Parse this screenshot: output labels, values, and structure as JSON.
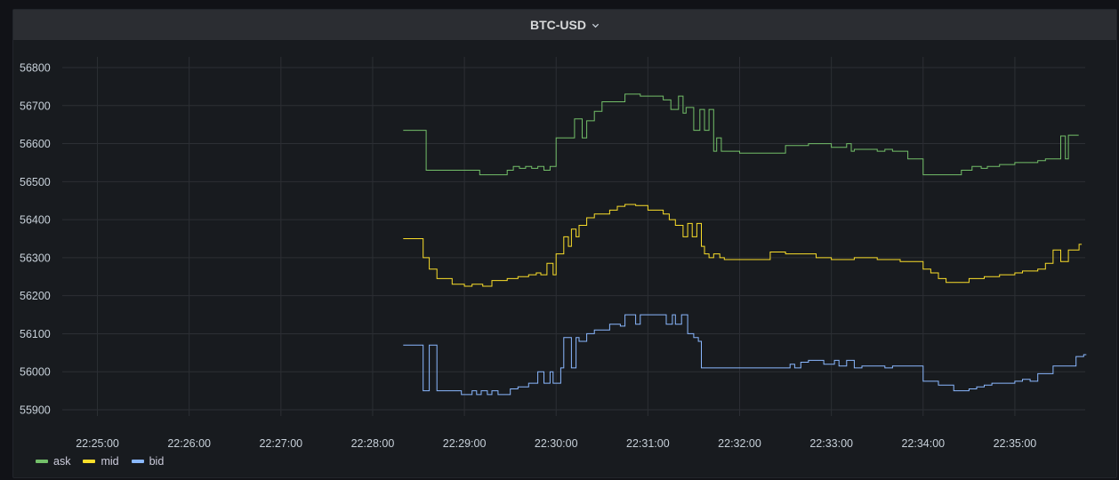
{
  "panel": {
    "title": "BTC-USD"
  },
  "colors": {
    "ask": "#73bf69",
    "mid": "#fade2a",
    "bid": "#8ab8ff",
    "grid": "#2c2f34"
  },
  "chart_data": {
    "type": "line",
    "title": "BTC-USD",
    "xlabel": "",
    "ylabel": "",
    "grid": true,
    "legend_position": "bottom-left",
    "interpolation": "step",
    "y_ticks": [
      "56800",
      "56700",
      "56600",
      "56500",
      "56400",
      "56300",
      "56200",
      "56100",
      "56000",
      "55900"
    ],
    "x_ticks": [
      "22:25:00",
      "22:26:00",
      "22:27:00",
      "22:28:00",
      "22:29:00",
      "22:30:00",
      "22:31:00",
      "22:32:00",
      "22:33:00",
      "22:34:00",
      "22:35:00"
    ],
    "x_range": [
      "22:24:37",
      "22:35:46"
    ],
    "ylim": [
      55875,
      56810
    ],
    "series": [
      {
        "name": "ask",
        "x": [
          "22:28:20",
          "22:28:35",
          "22:28:45",
          "22:29:10",
          "22:29:20",
          "22:29:28",
          "22:29:32",
          "22:29:36",
          "22:29:40",
          "22:29:44",
          "22:29:48",
          "22:29:52",
          "22:29:56",
          "22:30:00",
          "22:30:04",
          "22:30:08",
          "22:30:12",
          "22:30:17",
          "22:30:20",
          "22:30:25",
          "22:30:30",
          "22:30:45",
          "22:30:55",
          "22:31:10",
          "22:31:15",
          "22:31:20",
          "22:31:23",
          "22:31:25",
          "22:31:30",
          "22:31:34",
          "22:31:37",
          "22:31:40",
          "22:31:43",
          "22:31:45",
          "22:31:48",
          "22:31:52",
          "22:32:00",
          "22:32:30",
          "22:32:45",
          "22:33:00",
          "22:33:10",
          "22:33:13",
          "22:33:15",
          "22:33:30",
          "22:33:35",
          "22:33:40",
          "22:33:50",
          "22:34:00",
          "22:34:15",
          "22:34:25",
          "22:34:32",
          "22:34:38",
          "22:34:42",
          "22:34:50",
          "22:35:00",
          "22:35:15",
          "22:35:20",
          "22:35:30",
          "22:35:33",
          "22:35:35",
          "22:35:40"
        ],
        "y": [
          56635,
          56530,
          56530,
          56518,
          56518,
          56530,
          56540,
          56535,
          56540,
          56535,
          56540,
          56530,
          56540,
          56615,
          56615,
          56615,
          56665,
          56615,
          56660,
          56685,
          56710,
          56730,
          56725,
          56715,
          56690,
          56725,
          56680,
          56695,
          56635,
          56690,
          56635,
          56690,
          56580,
          56615,
          56580,
          56580,
          56575,
          56595,
          56600,
          56590,
          56600,
          56580,
          56585,
          56580,
          56585,
          56580,
          56560,
          56518,
          56518,
          56530,
          56540,
          56535,
          56540,
          56545,
          56550,
          56555,
          56560,
          56620,
          56560,
          56622,
          56622
        ]
      },
      {
        "name": "mid",
        "x": [
          "22:28:20",
          "22:28:33",
          "22:28:37",
          "22:28:42",
          "22:28:52",
          "22:29:00",
          "22:29:05",
          "22:29:12",
          "22:29:18",
          "22:29:28",
          "22:29:35",
          "22:29:42",
          "22:29:47",
          "22:29:50",
          "22:29:54",
          "22:29:58",
          "22:30:00",
          "22:30:03",
          "22:30:05",
          "22:30:08",
          "22:30:10",
          "22:30:13",
          "22:30:15",
          "22:30:20",
          "22:30:25",
          "22:30:35",
          "22:30:40",
          "22:30:45",
          "22:30:52",
          "22:31:00",
          "22:31:10",
          "22:31:14",
          "22:31:18",
          "22:31:23",
          "22:31:26",
          "22:31:29",
          "22:31:32",
          "22:31:35",
          "22:31:37",
          "22:31:40",
          "22:31:43",
          "22:31:47",
          "22:31:50",
          "22:32:00",
          "22:32:10",
          "22:32:20",
          "22:32:30",
          "22:32:50",
          "22:33:00",
          "22:33:15",
          "22:33:30",
          "22:33:45",
          "22:34:00",
          "22:34:05",
          "22:34:10",
          "22:34:15",
          "22:34:22",
          "22:34:30",
          "22:34:40",
          "22:34:50",
          "22:35:00",
          "22:35:05",
          "22:35:15",
          "22:35:20",
          "22:35:25",
          "22:35:30",
          "22:35:35",
          "22:35:42"
        ],
        "y": [
          56350,
          56300,
          56270,
          56245,
          56230,
          56225,
          56230,
          56225,
          56240,
          56245,
          56250,
          56255,
          56260,
          56255,
          56285,
          56255,
          56310,
          56310,
          56355,
          56330,
          56375,
          56355,
          56385,
          56405,
          56415,
          56425,
          56435,
          56440,
          56437,
          56425,
          56415,
          56400,
          56385,
          56355,
          56390,
          56355,
          56390,
          56330,
          56310,
          56300,
          56310,
          56300,
          56295,
          56295,
          56295,
          56315,
          56310,
          56300,
          56295,
          56300,
          56295,
          56290,
          56270,
          56260,
          56245,
          56235,
          56235,
          56245,
          56250,
          56255,
          56260,
          56265,
          56270,
          56285,
          56320,
          56290,
          56320,
          56335
        ]
      },
      {
        "name": "bid",
        "x": [
          "22:28:20",
          "22:28:33",
          "22:28:37",
          "22:28:42",
          "22:28:45",
          "22:28:58",
          "22:29:05",
          "22:29:08",
          "22:29:11",
          "22:29:15",
          "22:29:18",
          "22:29:22",
          "22:29:30",
          "22:29:35",
          "22:29:42",
          "22:29:48",
          "22:29:52",
          "22:29:56",
          "22:29:58",
          "22:30:00",
          "22:30:03",
          "22:30:05",
          "22:30:10",
          "22:30:13",
          "22:30:15",
          "22:30:20",
          "22:30:25",
          "22:30:35",
          "22:30:42",
          "22:30:45",
          "22:30:52",
          "22:30:55",
          "22:31:00",
          "22:31:05",
          "22:31:08",
          "22:31:12",
          "22:31:16",
          "22:31:18",
          "22:31:22",
          "22:31:26",
          "22:31:30",
          "22:31:33",
          "22:31:35",
          "22:31:40",
          "22:31:45",
          "22:32:00",
          "22:32:20",
          "22:32:33",
          "22:32:36",
          "22:32:40",
          "22:32:45",
          "22:32:55",
          "22:33:00",
          "22:33:02",
          "22:33:05",
          "22:33:10",
          "22:33:15",
          "22:33:20",
          "22:33:28",
          "22:33:35",
          "22:33:40",
          "22:33:45",
          "22:33:50",
          "22:34:00",
          "22:34:10",
          "22:34:20",
          "22:34:30",
          "22:34:35",
          "22:34:40",
          "22:34:45",
          "22:34:50",
          "22:35:00",
          "22:35:05",
          "22:35:10",
          "22:35:15",
          "22:35:25",
          "22:35:40",
          "22:35:45"
        ],
        "y": [
          56070,
          55950,
          56070,
          55950,
          55950,
          55940,
          55950,
          55940,
          55950,
          55940,
          55950,
          55940,
          55955,
          55960,
          55970,
          56000,
          55970,
          56000,
          55970,
          55970,
          56010,
          56090,
          56010,
          56090,
          56080,
          56100,
          56110,
          56125,
          56120,
          56150,
          56125,
          56150,
          56150,
          56150,
          56150,
          56125,
          56150,
          56125,
          56150,
          56100,
          56090,
          56080,
          56010,
          56010,
          56010,
          56010,
          56010,
          56020,
          56010,
          56025,
          56030,
          56020,
          56020,
          56030,
          56015,
          56030,
          56010,
          56015,
          56015,
          56010,
          56015,
          56015,
          56015,
          55975,
          55965,
          55950,
          55955,
          55960,
          55965,
          55970,
          55970,
          55975,
          55980,
          55975,
          55995,
          56015,
          56040,
          56045
        ]
      }
    ]
  }
}
